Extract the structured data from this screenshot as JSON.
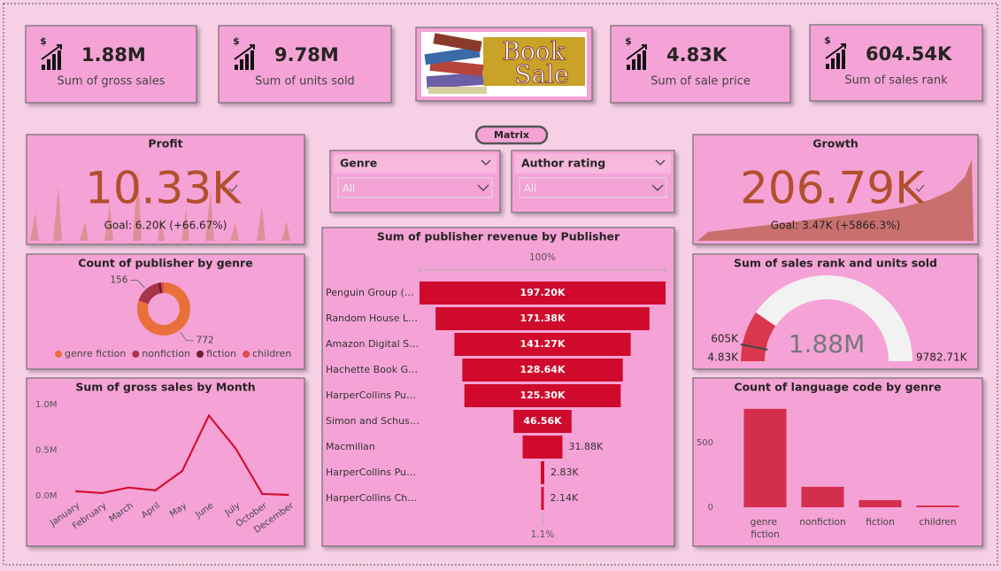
{
  "kpis": [
    {
      "value": "1.88M",
      "label": "Sum of gross sales"
    },
    {
      "value": "9.78M",
      "label": "Sum of units sold"
    },
    {
      "value": "4.83K",
      "label": "Sum of sale price"
    },
    {
      "value": "604.54K",
      "label": "Sum of sales rank"
    }
  ],
  "logo": {
    "line1": "Book",
    "line2": "Sale"
  },
  "matrix_button": "Matrix",
  "slicers": [
    {
      "label": "Genre",
      "selected": "All"
    },
    {
      "label": "Author rating",
      "selected": "All"
    }
  ],
  "profit": {
    "title": "Profit",
    "value": "10.33K",
    "goal": "Goal: 6.20K (+66.67%)"
  },
  "growth": {
    "title": "Growth",
    "value": "206.79K",
    "goal": "Goal: 3.47K (+5866.3%)"
  },
  "chart_data": [
    {
      "type": "pie",
      "title": "Count of publisher by genre",
      "categories": [
        "genre fiction",
        "nonfiction",
        "fiction",
        "children"
      ],
      "values": [
        772,
        156,
        20,
        15
      ],
      "colors": [
        "#e8703a",
        "#a8344a",
        "#6b1f2e",
        "#e04a4a"
      ]
    },
    {
      "type": "line",
      "title": "Sum of gross sales by Month",
      "categories": [
        "January",
        "February",
        "March",
        "April",
        "May",
        "June",
        "July",
        "October",
        "December"
      ],
      "values": [
        0.05,
        0.03,
        0.09,
        0.06,
        0.27,
        0.88,
        0.52,
        0.02,
        0.01
      ],
      "color": "#d3102e",
      "ylim": [
        0,
        1.0
      ],
      "yticks": [
        {
          "value": 0,
          "label": "0.0M"
        },
        {
          "value": 0.5,
          "label": "0.5M"
        },
        {
          "value": 1.0,
          "label": "1.0M"
        }
      ]
    },
    {
      "type": "funnel",
      "title": "Sum of publisher revenue by Publisher",
      "categories": [
        "Penguin Group (…",
        "Random House L…",
        "Amazon Digital S…",
        "Hachette Book G…",
        "HarperCollins Pu…",
        "Simon and Schus…",
        "Macmillan",
        "HarperCollins Pu…",
        "HarperCollins Ch…"
      ],
      "values": [
        197.2,
        171.38,
        141.27,
        128.64,
        125.3,
        46.56,
        31.88,
        2.83,
        2.14
      ],
      "value_labels": [
        "197.20K",
        "171.38K",
        "141.27K",
        "128.64K",
        "125.30K",
        "46.56K",
        "31.88K",
        "2.83K",
        "2.14K"
      ],
      "top_label": "100%",
      "bottom_label": "1.1%",
      "color": "#cf0a2c"
    },
    {
      "type": "gauge",
      "title": "Sum of sales rank and units sold",
      "value": 1880,
      "value_label": "1.88M",
      "min": 4.83,
      "min_label": "4.83K",
      "max": 9782.71,
      "max_label": "9782.71K",
      "target": 605,
      "target_label": "605K",
      "color": "#d9374d"
    },
    {
      "type": "bar",
      "title": "Count of language code by genre",
      "categories": [
        "genre fiction",
        "nonfiction",
        "fiction",
        "children"
      ],
      "values": [
        760,
        158,
        55,
        14
      ],
      "color": "#d42e4e",
      "ylim": [
        0,
        800
      ],
      "yticks": [
        0,
        500
      ]
    }
  ]
}
